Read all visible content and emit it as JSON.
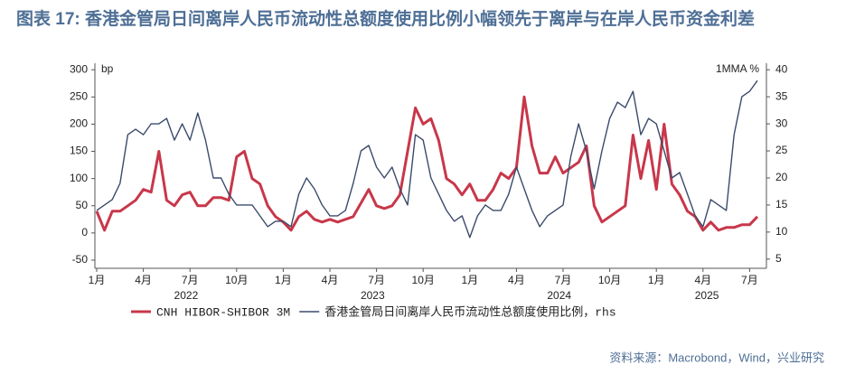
{
  "chart_data": {
    "type": "line",
    "title": "图表 17: 香港金管局日间离岸人民币流动性总额度使用比例小幅领先于离岸与在岸人民币资金利差",
    "y_unit": "bp",
    "y2_unit": "1MMA %",
    "source": "资料来源：Macrobond，Wind，兴业研究",
    "categories": [
      "1月",
      null,
      null,
      null,
      null,
      null,
      "4月",
      null,
      null,
      null,
      null,
      null,
      "7月",
      null,
      null,
      null,
      null,
      null,
      "10月",
      null,
      null,
      null,
      null,
      null,
      "1月",
      null,
      null,
      null,
      null,
      null,
      "4月",
      null,
      null,
      null,
      null,
      null,
      "7月",
      null,
      null,
      null,
      null,
      null,
      "10月",
      null,
      null,
      null,
      null,
      null,
      "1月",
      null,
      null,
      null,
      null,
      null,
      "4月",
      null,
      null,
      null,
      null,
      null,
      "7月",
      null,
      null,
      null,
      null,
      null,
      "10月",
      null,
      null,
      null,
      null,
      null,
      "1月",
      null,
      null,
      null,
      null,
      null,
      "4月",
      null,
      null,
      null,
      null,
      null,
      "7月",
      null
    ],
    "year_labels": [
      "2022",
      "2023",
      "2024",
      "2025"
    ],
    "series": [
      {
        "name": "CNH HIBOR-SHIBOR 3M",
        "color": "#c8374a",
        "values": [
          40,
          5,
          40,
          40,
          50,
          60,
          80,
          75,
          150,
          60,
          50,
          70,
          75,
          50,
          50,
          65,
          65,
          60,
          140,
          150,
          100,
          90,
          50,
          30,
          20,
          5,
          30,
          40,
          25,
          20,
          25,
          20,
          25,
          30,
          55,
          80,
          50,
          45,
          50,
          70,
          150,
          230,
          200,
          210,
          170,
          100,
          90,
          70,
          90,
          60,
          60,
          80,
          110,
          100,
          120,
          250,
          160,
          110,
          110,
          140,
          110,
          120,
          130,
          160,
          50,
          20,
          30,
          40,
          50,
          180,
          100,
          170,
          80,
          200,
          90,
          70,
          40,
          30,
          5,
          20,
          5,
          10,
          10,
          15,
          15,
          30
        ]
      },
      {
        "name": "香港金管局日间离岸人民币流动性总额度使用比例，rhs",
        "color": "#3b4a6b",
        "axis": "y2",
        "values": [
          14,
          15,
          16,
          19,
          28,
          29,
          28,
          30,
          30,
          31,
          27,
          30,
          27,
          32,
          27,
          20,
          20,
          17,
          15,
          15,
          15,
          13,
          11,
          12,
          12,
          11,
          17,
          20,
          18,
          15,
          13,
          13,
          14,
          19,
          25,
          26,
          22,
          20,
          22,
          18,
          15,
          28,
          27,
          20,
          17,
          14,
          12,
          13,
          9,
          13,
          15,
          14,
          14,
          17,
          22,
          18,
          14,
          11,
          13,
          14,
          15,
          24,
          30,
          25,
          18,
          25,
          31,
          34,
          33,
          36,
          28,
          31,
          30,
          25,
          20,
          21,
          17,
          13,
          11,
          16,
          15,
          14,
          28,
          35,
          36,
          38
        ]
      }
    ],
    "ylim": [
      -65,
      312
    ],
    "yticks": [
      -50,
      0,
      50,
      100,
      150,
      200,
      250,
      300
    ],
    "y2lim": [
      3.3,
      41.2
    ],
    "y2ticks": [
      5,
      10,
      15,
      20,
      25,
      30,
      35,
      40
    ],
    "grid": false
  }
}
